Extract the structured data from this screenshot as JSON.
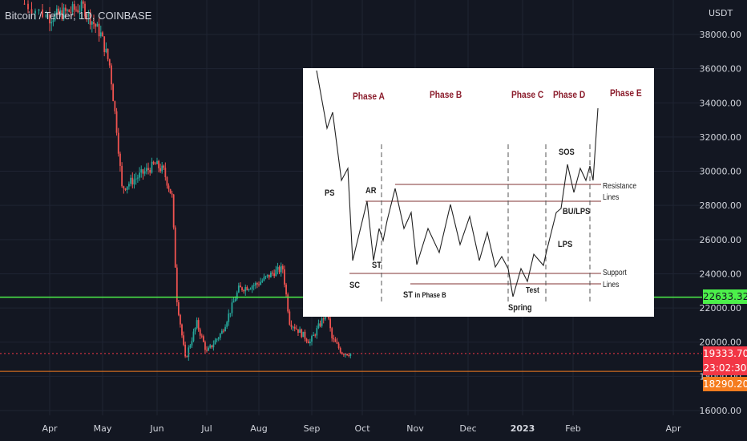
{
  "symbol_title": "Bitcoin / Tether, 1D, COINBASE",
  "axis_unit": "USDT",
  "chart_data": {
    "type": "candlestick",
    "title": "Bitcoin / Tether, 1D, COINBASE",
    "ylabel": "USDT",
    "ylim": [
      15000,
      40000
    ],
    "y_ticks": [
      "38000.00",
      "36000.00",
      "34000.00",
      "32000.00",
      "30000.00",
      "28000.00",
      "26000.00",
      "24000.00",
      "22000.00",
      "20000.00",
      "18000.00",
      "16000.00"
    ],
    "x_ticks": [
      "Apr",
      "May",
      "Jun",
      "Jul",
      "Aug",
      "Sep",
      "Oct",
      "Nov",
      "Dec",
      "2023",
      "Feb",
      "Apr"
    ],
    "approx_close_path": [
      {
        "date": "Mar 25",
        "price": 39800
      },
      {
        "date": "Apr 1",
        "price": 39000
      },
      {
        "date": "Apr 10",
        "price": 39300
      },
      {
        "date": "Apr 20",
        "price": 39600
      },
      {
        "date": "Apr 30",
        "price": 38000
      },
      {
        "date": "May 5",
        "price": 36200
      },
      {
        "date": "May 9",
        "price": 32500
      },
      {
        "date": "May 12",
        "price": 29000
      },
      {
        "date": "May 20",
        "price": 29600
      },
      {
        "date": "May 31",
        "price": 30400
      },
      {
        "date": "Jun 5",
        "price": 30000
      },
      {
        "date": "Jun 10",
        "price": 28500
      },
      {
        "date": "Jun 13",
        "price": 22500
      },
      {
        "date": "Jun 18",
        "price": 19000
      },
      {
        "date": "Jun 25",
        "price": 21100
      },
      {
        "date": "Jul 1",
        "price": 19400
      },
      {
        "date": "Jul 10",
        "price": 20600
      },
      {
        "date": "Jul 20",
        "price": 23100
      },
      {
        "date": "Jul 31",
        "price": 23400
      },
      {
        "date": "Aug 10",
        "price": 24100
      },
      {
        "date": "Aug 15",
        "price": 24300
      },
      {
        "date": "Aug 19",
        "price": 21200
      },
      {
        "date": "Aug 31",
        "price": 20000
      },
      {
        "date": "Sep 10",
        "price": 21800
      },
      {
        "date": "Sep 13",
        "price": 20200
      },
      {
        "date": "Sep 19",
        "price": 19400
      },
      {
        "date": "Sep 24",
        "price": 19334
      }
    ],
    "horizontal_lines": [
      {
        "price": 22633.32,
        "color": "#4cf04a"
      },
      {
        "price": 19333.7,
        "color": "#f23645"
      },
      {
        "price": 18290.2,
        "color": "#f57c1f"
      }
    ],
    "price_tags": [
      "22633.32",
      "19333.70",
      "23:02:30",
      "18290.20"
    ]
  },
  "inset": {
    "phases": [
      "Phase A",
      "Phase B",
      "Phase C",
      "Phase D",
      "Phase E"
    ],
    "labels": {
      "ps": "PS",
      "ar": "AR",
      "st": "ST",
      "sc": "SC",
      "st_b": "ST",
      "st_b_suffix": "in Phase B",
      "spring": "Spring",
      "test": "Test",
      "sos": "SOS",
      "bu_lps": "BU/LPS",
      "lps": "LPS",
      "resistance_1": "Resistance",
      "resistance_2": "Lines",
      "support_1": "Support",
      "support_2": "Lines"
    }
  },
  "colors": {
    "background": "#131722",
    "grid": "#1f2433",
    "up": "#26a69a",
    "down": "#ef5350",
    "green_line": "#4cf04a",
    "red_line": "#f23645",
    "orange_line": "#f57c1f",
    "axis_text": "#d1d4dc"
  }
}
